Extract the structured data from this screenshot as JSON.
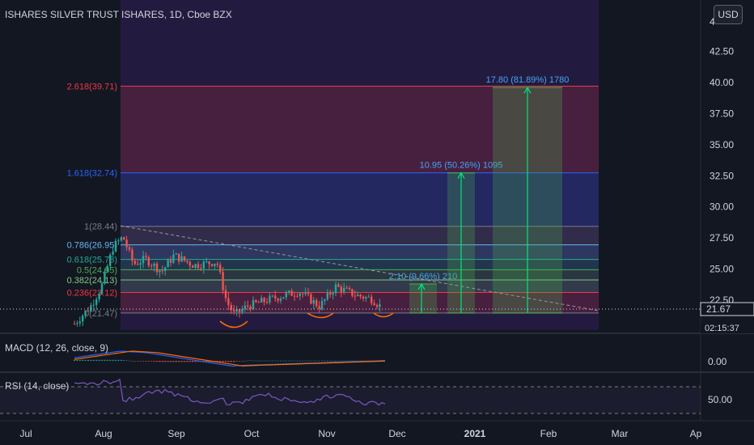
{
  "header": {
    "title": "ISHARES SILVER TRUST ISHARES, 1D, Cboe BZX",
    "currency_button": "USD"
  },
  "price_axis": {
    "ticks": [
      "42.50",
      "40.00",
      "37.50",
      "35.00",
      "32.50",
      "30.00",
      "27.50",
      "25.00",
      "22.50"
    ],
    "top_partial": "4",
    "last_price": "21.67",
    "countdown": "02:15:37"
  },
  "fib_levels": [
    {
      "label": "2.618(39.71)",
      "value": 39.71,
      "color": "#f23645"
    },
    {
      "label": "1.618(32.74)",
      "value": 32.74,
      "color": "#2962ff"
    },
    {
      "label": "1(28.44)",
      "value": 28.44,
      "color": "#787b86"
    },
    {
      "label": "0.786(26.95)",
      "value": 26.95,
      "color": "#64b5f6"
    },
    {
      "label": "0.618(25.78)",
      "value": 25.78,
      "color": "#22ab94"
    },
    {
      "label": "0.5(24.95)",
      "value": 24.95,
      "color": "#4caf50"
    },
    {
      "label": "0.382(24.13)",
      "value": 24.13,
      "color": "#81c784"
    },
    {
      "label": "0.236(23.12)",
      "value": 23.12,
      "color": "#f23645"
    },
    {
      "label": "0(21.47)",
      "value": 21.47,
      "color": "#787b86"
    }
  ],
  "projections": [
    {
      "label": "2.10 (9.66%) 210",
      "target": 23.8
    },
    {
      "label": "10.95 (50.26%) 1095",
      "target": 32.74
    },
    {
      "label": "17.80 (81.89%) 1780",
      "target": 39.6
    }
  ],
  "macd": {
    "label": "MACD (12, 26, close, 9)",
    "tick": "0.00"
  },
  "rsi": {
    "label": "RSI (14, close)",
    "tick": "50.00"
  },
  "time_axis": [
    "Jul",
    "Aug",
    "Sep",
    "Oct",
    "Nov",
    "Dec",
    "2021",
    "Feb",
    "Mar",
    "Ap"
  ],
  "chart_data": {
    "type": "candlestick",
    "title": "ISHARES SILVER TRUST ISHARES, 1D, Cboe BZX",
    "ylim": [
      19.8,
      45.0
    ],
    "x_range": [
      "Jul 2020",
      "Apr 2021"
    ],
    "close_series_approx": [
      {
        "month": "Jul (late)",
        "close": 20.5
      },
      {
        "month": "Aug (early)",
        "close": 26.5
      },
      {
        "month": "Aug (mid)",
        "close": 25.2
      },
      {
        "month": "Sep (early)",
        "close": 25.6
      },
      {
        "month": "Sep (late)",
        "close": 21.7
      },
      {
        "month": "Oct",
        "close": 22.4
      },
      {
        "month": "Nov (early)",
        "close": 23.5
      },
      {
        "month": "Nov (late)",
        "close": 21.9
      }
    ],
    "last_price": 21.67,
    "colors": {
      "up": "#26a69a",
      "down": "#ef5350",
      "macd": "#2962ff",
      "signal": "#ff6d00",
      "rsi": "#7e57c2"
    }
  }
}
